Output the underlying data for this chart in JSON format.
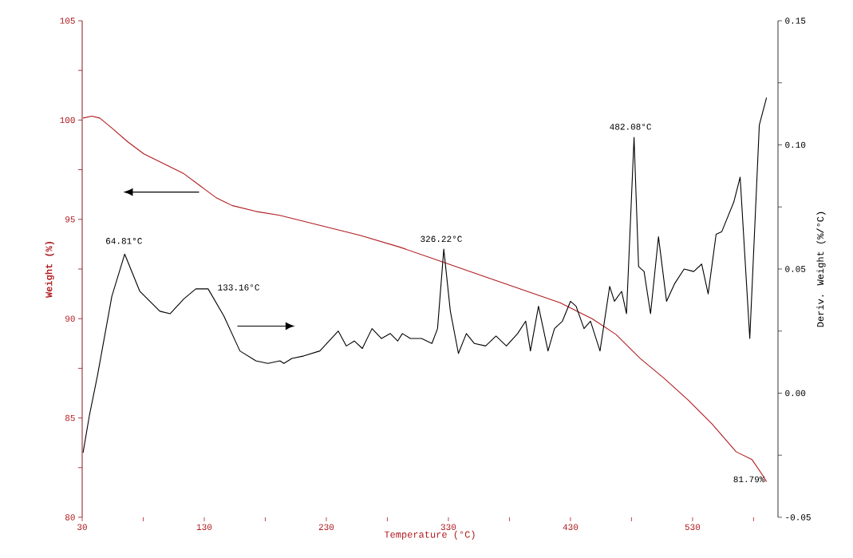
{
  "chart_data": {
    "type": "line",
    "xlabel": "Temperature (°C)",
    "ylabel": "Weight (%)",
    "y2label": "Deriv. Weight (%/°C)",
    "xlim": [
      30,
      600
    ],
    "xticks": [
      30,
      {
        "value": 80,
        "label": null
      },
      130,
      {
        "value": 180,
        "label": null
      },
      230,
      {
        "value": 280,
        "label": null
      },
      330,
      {
        "value": 380,
        "label": null
      },
      430,
      {
        "value": 480,
        "label": null
      },
      530,
      {
        "value": 580,
        "label": null
      }
    ],
    "ylim": [
      80,
      105
    ],
    "yticks": [
      80,
      {
        "value": 82.5,
        "label": null
      },
      85,
      {
        "value": 87.5,
        "label": null
      },
      90,
      {
        "value": 92.5,
        "label": null
      },
      95,
      {
        "value": 97.5,
        "label": null
      },
      100,
      {
        "value": 102.5,
        "label": null
      },
      105
    ],
    "y2lim": [
      -0.05,
      0.15
    ],
    "y2ticks": [
      -0.05,
      {
        "value": -0.025,
        "label": null
      },
      {
        "value": 0,
        "label": "0.00"
      },
      {
        "value": 0.025,
        "label": null
      },
      0.05,
      {
        "value": 0.075,
        "label": null
      },
      {
        "value": 0.1,
        "label": "0.10"
      },
      {
        "value": 0.125,
        "label": null
      },
      0.15
    ],
    "series": [
      {
        "color": "#b01c20",
        "x": [
          30.7,
          37.9,
          44.4,
          54.3,
          67.4,
          80.5,
          96.9,
          113.3,
          126.4,
          139.5,
          152.6,
          172.3,
          191.9,
          224.7,
          257.5,
          290.3,
          323.1,
          355.9,
          388.7,
          421.5,
          447.7,
          467.4,
          487,
          506.7,
          526.4,
          546,
          565.7,
          578.8,
          588.7,
          590.6
        ],
        "values": [
          100.1,
          100.2,
          100.1,
          99.6,
          98.9,
          98.3,
          97.8,
          97.3,
          96.7,
          96.1,
          95.7,
          95.4,
          95.2,
          94.7,
          94.2,
          93.6,
          92.9,
          92.2,
          91.5,
          90.8,
          90.0,
          89.2,
          88.0,
          87.0,
          85.9,
          84.7,
          83.3,
          82.9,
          82.0,
          81.79
        ]
      },
      {
        "color": "#000000",
        "axis": "y2",
        "x": [
          30.7,
          35.9,
          42.5,
          54.3,
          64.81,
          77.2,
          93.6,
          102.1,
          113.3,
          123.1,
          133.16,
          146.1,
          159.2,
          172.3,
          182.1,
          192,
          195.2,
          201.8,
          211.6,
          224.7,
          239.8,
          246.4,
          252.9,
          259.5,
          267.4,
          275.2,
          282.4,
          288.4,
          292.3,
          298.8,
          308,
          316.5,
          321.1,
          326.22,
          331.6,
          338.2,
          344.7,
          351.3,
          360.5,
          369,
          377.5,
          386.7,
          393.3,
          397.2,
          403.8,
          411.6,
          416.9,
          423.4,
          430,
          434.6,
          441.1,
          446.4,
          454.2,
          462.1,
          466,
          471.9,
          475.9,
          482.08,
          485.8,
          490.3,
          495.6,
          502.1,
          508.7,
          515.2,
          523.1,
          531,
          537.5,
          542.8,
          549.3,
          553.9,
          563.8,
          569,
          576.9,
          580.8,
          584.7,
          590.6
        ],
        "values": [
          -0.024,
          -0.009,
          0.007,
          0.039,
          0.056,
          0.041,
          0.033,
          0.032,
          0.038,
          0.042,
          0.042,
          0.031,
          0.017,
          0.013,
          0.012,
          0.013,
          0.012,
          0.014,
          0.015,
          0.017,
          0.025,
          0.019,
          0.021,
          0.018,
          0.026,
          0.022,
          0.024,
          0.021,
          0.024,
          0.022,
          0.022,
          0.02,
          0.026,
          0.058,
          0.033,
          0.016,
          0.024,
          0.02,
          0.019,
          0.023,
          0.019,
          0.024,
          0.029,
          0.017,
          0.035,
          0.017,
          0.026,
          0.029,
          0.037,
          0.035,
          0.026,
          0.029,
          0.017,
          0.043,
          0.037,
          0.041,
          0.032,
          0.103,
          0.051,
          0.049,
          0.032,
          0.063,
          0.037,
          0.044,
          0.05,
          0.049,
          0.052,
          0.04,
          0.064,
          0.065,
          0.077,
          0.087,
          0.022,
          0.065,
          0.108,
          0.119
        ]
      }
    ],
    "annotations": [
      "64.81°C",
      "133.16°C",
      "326.22°C",
      "482.08°C",
      {
        "text": "81.79%",
        "x": 590.6,
        "y": 81.79
      }
    ]
  }
}
